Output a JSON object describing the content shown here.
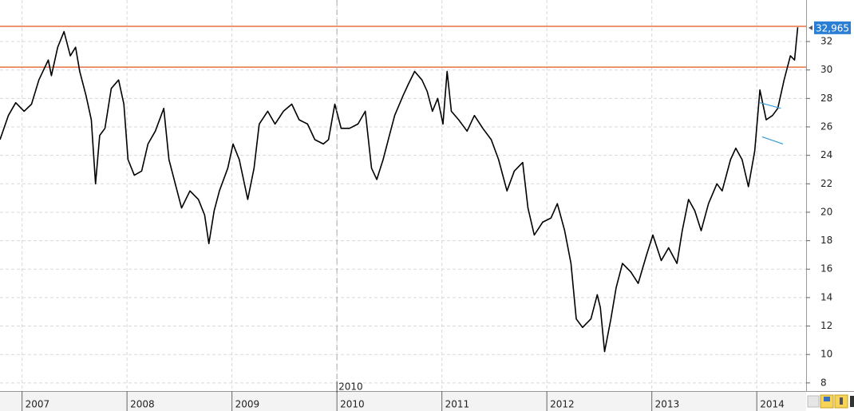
{
  "chart_data": {
    "type": "line",
    "x": [
      2006.79,
      2006.87,
      2006.94,
      2007.02,
      2007.09,
      2007.16,
      2007.25,
      2007.28,
      2007.34,
      2007.4,
      2007.46,
      2007.51,
      2007.55,
      2007.61,
      2007.66,
      2007.7,
      2007.74,
      2007.79,
      2007.85,
      2007.92,
      2007.97,
      2008.01,
      2008.07,
      2008.14,
      2008.2,
      2008.27,
      2008.35,
      2008.4,
      2008.46,
      2008.52,
      2008.6,
      2008.68,
      2008.74,
      2008.78,
      2008.83,
      2008.88,
      2008.96,
      2009.01,
      2009.07,
      2009.15,
      2009.21,
      2009.26,
      2009.34,
      2009.41,
      2009.49,
      2009.57,
      2009.64,
      2009.72,
      2009.79,
      2009.87,
      2009.92,
      2009.98,
      2010.04,
      2010.12,
      2010.2,
      2010.27,
      2010.33,
      2010.38,
      2010.44,
      2010.5,
      2010.55,
      2010.63,
      2010.68,
      2010.74,
      2010.81,
      2010.86,
      2010.91,
      2010.96,
      2011.01,
      2011.05,
      2011.09,
      2011.16,
      2011.24,
      2011.31,
      2011.39,
      2011.47,
      2011.54,
      2011.62,
      2011.69,
      2011.77,
      2011.82,
      2011.88,
      2011.96,
      2012.04,
      2012.1,
      2012.17,
      2012.23,
      2012.28,
      2012.34,
      2012.42,
      2012.48,
      2012.51,
      2012.55,
      2012.61,
      2012.66,
      2012.72,
      2012.8,
      2012.87,
      2012.95,
      2013.01,
      2013.09,
      2013.16,
      2013.24,
      2013.29,
      2013.35,
      2013.41,
      2013.47,
      2013.54,
      2013.62,
      2013.67,
      2013.75,
      2013.8,
      2013.86,
      2013.92,
      2013.98,
      2014.03,
      2014.09,
      2014.15,
      2014.2,
      2014.26,
      2014.32,
      2014.36,
      2014.39
    ],
    "series": [
      {
        "color": "#000000",
        "values": [
          25.1,
          26.8,
          27.7,
          27.1,
          27.6,
          29.3,
          30.7,
          29.6,
          31.6,
          32.7,
          31.0,
          31.6,
          29.9,
          28.2,
          26.5,
          22.0,
          25.4,
          25.9,
          28.7,
          29.3,
          27.6,
          23.7,
          22.6,
          22.9,
          24.8,
          25.7,
          27.3,
          23.7,
          22.0,
          20.3,
          21.5,
          20.9,
          19.8,
          17.8,
          20.1,
          21.5,
          23.1,
          24.8,
          23.7,
          20.9,
          23.1,
          26.2,
          27.1,
          26.2,
          27.1,
          27.6,
          26.5,
          26.2,
          25.1,
          24.8,
          25.1,
          27.6,
          25.9,
          25.9,
          26.2,
          27.1,
          23.1,
          22.3,
          23.7,
          25.4,
          26.8,
          28.2,
          29.0,
          29.9,
          29.3,
          28.5,
          27.1,
          28.0,
          26.2,
          29.9,
          27.1,
          26.5,
          25.7,
          26.8,
          25.9,
          25.1,
          23.7,
          21.5,
          22.9,
          23.5,
          20.3,
          18.4,
          19.3,
          19.6,
          20.6,
          18.7,
          16.4,
          12.5,
          11.9,
          12.5,
          14.2,
          13.3,
          10.2,
          12.5,
          14.7,
          16.4,
          15.8,
          15.0,
          17.0,
          18.4,
          16.6,
          17.5,
          16.4,
          18.7,
          20.9,
          20.1,
          18.7,
          20.6,
          22.0,
          21.5,
          23.7,
          24.5,
          23.7,
          21.8,
          24.3,
          28.6,
          26.5,
          26.8,
          27.3,
          29.3,
          31.0,
          30.7,
          33.0
        ]
      }
    ],
    "xlim": [
      2006.79,
      2014.47
    ],
    "xticks": [
      2007,
      2008,
      2009,
      2010,
      2011,
      2012,
      2013,
      2014
    ],
    "ylim": [
      7.43,
      34.92
    ],
    "yticks": [
      8,
      10,
      12,
      14,
      16,
      18,
      20,
      22,
      24,
      26,
      28,
      30,
      32
    ],
    "grid": true,
    "hlines": {
      "color": "#e0561b",
      "values": [
        33.07,
        30.2
      ]
    },
    "trendlines": {
      "color": "#3a9ad9",
      "lines": [
        {
          "x": [
            2014.03,
            2014.23
          ],
          "y": [
            27.7,
            27.3
          ]
        },
        {
          "x": [
            2014.05,
            2014.25
          ],
          "y": [
            25.3,
            24.8
          ]
        }
      ]
    },
    "last_value": {
      "value": 32.965,
      "label": "32,965"
    },
    "cursor_x": 2010
  }
}
